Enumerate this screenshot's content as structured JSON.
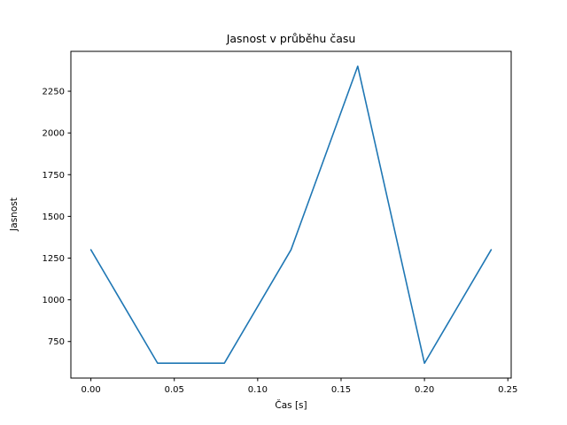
{
  "figure": {
    "background": "#ffffff"
  },
  "chart_data": {
    "type": "line",
    "title": "Jasnost v průběhu času",
    "xlabel": "Čas [s]",
    "ylabel": "Jasnost",
    "x": [
      0.0,
      0.04,
      0.08,
      0.12,
      0.16,
      0.2,
      0.24
    ],
    "y": [
      1300,
      620,
      620,
      1300,
      2400,
      620,
      1300
    ],
    "xlim": [
      -0.012,
      0.252
    ],
    "ylim": [
      531,
      2489
    ],
    "xticks": [
      0.0,
      0.05,
      0.1,
      0.15,
      0.2,
      0.25
    ],
    "xtick_labels": [
      "0.00",
      "0.05",
      "0.10",
      "0.15",
      "0.20",
      "0.25"
    ],
    "yticks": [
      750,
      1000,
      1250,
      1500,
      1750,
      2000,
      2250
    ],
    "ytick_labels": [
      "750",
      "1000",
      "1250",
      "1500",
      "1750",
      "2000",
      "2250"
    ],
    "line_color": "#1f77b4",
    "line_width": 1.6,
    "axes_color": "#000000",
    "grid": false,
    "legend": null
  }
}
